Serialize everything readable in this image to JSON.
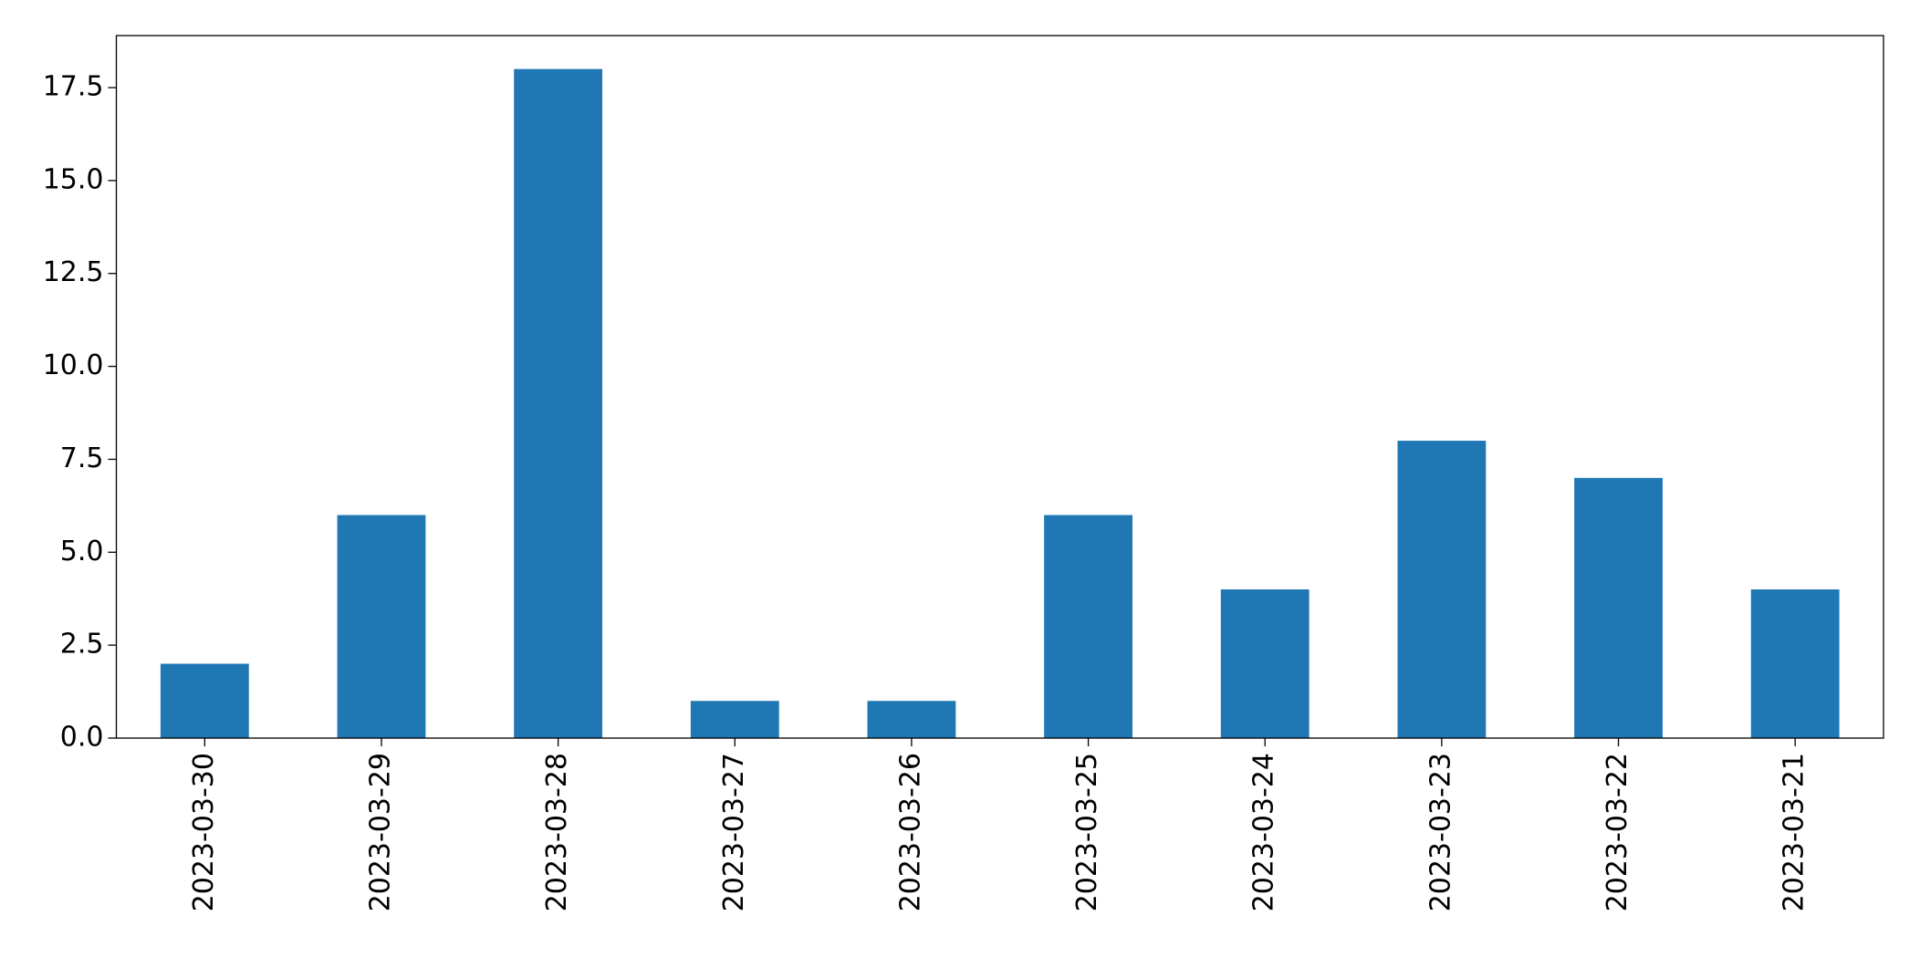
{
  "chart_data": {
    "type": "bar",
    "categories": [
      "2023-03-30",
      "2023-03-29",
      "2023-03-28",
      "2023-03-27",
      "2023-03-26",
      "2023-03-25",
      "2023-03-24",
      "2023-03-23",
      "2023-03-22",
      "2023-03-21"
    ],
    "values": [
      2,
      6,
      18,
      1,
      1,
      6,
      4,
      8,
      7,
      4
    ],
    "color": "#1f77b4",
    "ylim": [
      0,
      18.9
    ],
    "yticks": [
      {
        "value": 0,
        "label": "0.0"
      },
      {
        "value": 2.5,
        "label": "2.5"
      },
      {
        "value": 5,
        "label": "5.0"
      },
      {
        "value": 7.5,
        "label": "7.5"
      },
      {
        "value": 10,
        "label": "10.0"
      },
      {
        "value": 12.5,
        "label": "12.5"
      },
      {
        "value": 15,
        "label": "15.0"
      },
      {
        "value": 17.5,
        "label": "17.5"
      }
    ],
    "grid": false
  }
}
